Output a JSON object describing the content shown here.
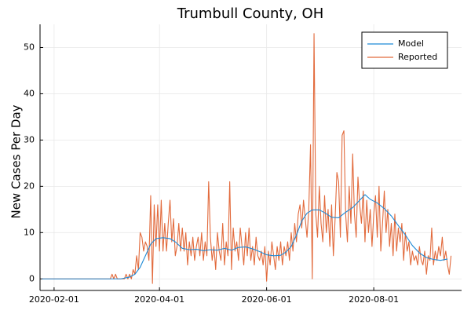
{
  "chart_data": {
    "type": "line",
    "title": "Trumbull County, OH",
    "xlabel": "",
    "ylabel": "New Cases Per Day",
    "x_axis": {
      "type": "date",
      "range": [
        "2020-01-24",
        "2020-09-20"
      ],
      "ticks": [
        "2020-02-01",
        "2020-04-01",
        "2020-06-01",
        "2020-08-01"
      ]
    },
    "y_axis": {
      "range": [
        -2.5,
        55
      ],
      "ticks": [
        0,
        10,
        20,
        30,
        40,
        50
      ]
    },
    "grid": true,
    "legend": "top-right",
    "series": [
      {
        "name": "Model",
        "color": "#1f8ad6",
        "points": [
          [
            "2020-01-25",
            0
          ],
          [
            "2020-03-10",
            0
          ],
          [
            "2020-03-15",
            0.4
          ],
          [
            "2020-03-18",
            1.0
          ],
          [
            "2020-03-21",
            2.5
          ],
          [
            "2020-03-24",
            5.0
          ],
          [
            "2020-03-27",
            7.5
          ],
          [
            "2020-03-30",
            8.7
          ],
          [
            "2020-04-03",
            8.9
          ],
          [
            "2020-04-07",
            8.7
          ],
          [
            "2020-04-10",
            8.0
          ],
          [
            "2020-04-14",
            6.6
          ],
          [
            "2020-04-18",
            6.3
          ],
          [
            "2020-04-22",
            6.4
          ],
          [
            "2020-04-26",
            6.1
          ],
          [
            "2020-04-30",
            6.3
          ],
          [
            "2020-05-04",
            6.2
          ],
          [
            "2020-05-08",
            6.6
          ],
          [
            "2020-05-12",
            6.2
          ],
          [
            "2020-05-16",
            6.8
          ],
          [
            "2020-05-20",
            6.9
          ],
          [
            "2020-05-24",
            6.5
          ],
          [
            "2020-05-28",
            5.9
          ],
          [
            "2020-06-01",
            5.2
          ],
          [
            "2020-06-05",
            5.0
          ],
          [
            "2020-06-09",
            5.1
          ],
          [
            "2020-06-12",
            5.8
          ],
          [
            "2020-06-15",
            7.0
          ],
          [
            "2020-06-18",
            9.5
          ],
          [
            "2020-06-21",
            12.5
          ],
          [
            "2020-06-24",
            14.2
          ],
          [
            "2020-06-27",
            14.9
          ],
          [
            "2020-07-01",
            14.9
          ],
          [
            "2020-07-04",
            14.3
          ],
          [
            "2020-07-08",
            13.3
          ],
          [
            "2020-07-12",
            13.2
          ],
          [
            "2020-07-16",
            14.4
          ],
          [
            "2020-07-20",
            15.4
          ],
          [
            "2020-07-24",
            17.0
          ],
          [
            "2020-07-27",
            18.2
          ],
          [
            "2020-07-30",
            17.2
          ],
          [
            "2020-08-03",
            16.4
          ],
          [
            "2020-08-07",
            15.2
          ],
          [
            "2020-08-11",
            13.6
          ],
          [
            "2020-08-15",
            11.5
          ],
          [
            "2020-08-19",
            9.5
          ],
          [
            "2020-08-23",
            7.2
          ],
          [
            "2020-08-27",
            5.6
          ],
          [
            "2020-08-31",
            4.6
          ],
          [
            "2020-09-04",
            4.2
          ],
          [
            "2020-09-08",
            4.0
          ],
          [
            "2020-09-12",
            4.3
          ]
        ]
      },
      {
        "name": "Reported",
        "color": "#e26a3c",
        "points": [
          [
            "2020-01-25",
            0
          ],
          [
            "2020-03-04",
            0
          ],
          [
            "2020-03-05",
            1
          ],
          [
            "2020-03-06",
            0
          ],
          [
            "2020-03-07",
            1
          ],
          [
            "2020-03-08",
            0
          ],
          [
            "2020-03-12",
            0
          ],
          [
            "2020-03-13",
            1
          ],
          [
            "2020-03-14",
            0
          ],
          [
            "2020-03-15",
            1
          ],
          [
            "2020-03-16",
            0
          ],
          [
            "2020-03-17",
            2
          ],
          [
            "2020-03-18",
            1
          ],
          [
            "2020-03-19",
            5
          ],
          [
            "2020-03-20",
            2
          ],
          [
            "2020-03-21",
            10
          ],
          [
            "2020-03-22",
            9
          ],
          [
            "2020-03-23",
            6
          ],
          [
            "2020-03-24",
            8
          ],
          [
            "2020-03-25",
            7
          ],
          [
            "2020-03-26",
            4
          ],
          [
            "2020-03-27",
            18
          ],
          [
            "2020-03-28",
            -1
          ],
          [
            "2020-03-29",
            16
          ],
          [
            "2020-03-30",
            7
          ],
          [
            "2020-03-31",
            16
          ],
          [
            "2020-04-01",
            6
          ],
          [
            "2020-04-02",
            17
          ],
          [
            "2020-04-03",
            6
          ],
          [
            "2020-04-04",
            12
          ],
          [
            "2020-04-05",
            6
          ],
          [
            "2020-04-06",
            12
          ],
          [
            "2020-04-07",
            17
          ],
          [
            "2020-04-08",
            8
          ],
          [
            "2020-04-09",
            13
          ],
          [
            "2020-04-10",
            5
          ],
          [
            "2020-04-11",
            7
          ],
          [
            "2020-04-12",
            12
          ],
          [
            "2020-04-13",
            6
          ],
          [
            "2020-04-14",
            11
          ],
          [
            "2020-04-15",
            6
          ],
          [
            "2020-04-16",
            10
          ],
          [
            "2020-04-17",
            3
          ],
          [
            "2020-04-18",
            8
          ],
          [
            "2020-04-19",
            5
          ],
          [
            "2020-04-20",
            9
          ],
          [
            "2020-04-21",
            4
          ],
          [
            "2020-04-22",
            7
          ],
          [
            "2020-04-23",
            9
          ],
          [
            "2020-04-24",
            5
          ],
          [
            "2020-04-25",
            10
          ],
          [
            "2020-04-26",
            4
          ],
          [
            "2020-04-27",
            8
          ],
          [
            "2020-04-28",
            5
          ],
          [
            "2020-04-29",
            21
          ],
          [
            "2020-04-30",
            9
          ],
          [
            "2020-05-01",
            4
          ],
          [
            "2020-05-02",
            7
          ],
          [
            "2020-05-03",
            2
          ],
          [
            "2020-05-04",
            10
          ],
          [
            "2020-05-05",
            6
          ],
          [
            "2020-05-06",
            4
          ],
          [
            "2020-05-07",
            12
          ],
          [
            "2020-05-08",
            3
          ],
          [
            "2020-05-09",
            8
          ],
          [
            "2020-05-10",
            5
          ],
          [
            "2020-05-11",
            21
          ],
          [
            "2020-05-12",
            2
          ],
          [
            "2020-05-13",
            11
          ],
          [
            "2020-05-14",
            6
          ],
          [
            "2020-05-15",
            8
          ],
          [
            "2020-05-16",
            4
          ],
          [
            "2020-05-17",
            11
          ],
          [
            "2020-05-18",
            7
          ],
          [
            "2020-05-19",
            3
          ],
          [
            "2020-05-20",
            10
          ],
          [
            "2020-05-21",
            5
          ],
          [
            "2020-05-22",
            11
          ],
          [
            "2020-05-23",
            4
          ],
          [
            "2020-05-24",
            7
          ],
          [
            "2020-05-25",
            3
          ],
          [
            "2020-05-26",
            9
          ],
          [
            "2020-05-27",
            5
          ],
          [
            "2020-05-28",
            4
          ],
          [
            "2020-05-29",
            6
          ],
          [
            "2020-05-30",
            3
          ],
          [
            "2020-05-31",
            7
          ],
          [
            "2020-06-01",
            -0.5
          ],
          [
            "2020-06-02",
            6
          ],
          [
            "2020-06-03",
            3
          ],
          [
            "2020-06-04",
            8
          ],
          [
            "2020-06-05",
            5
          ],
          [
            "2020-06-06",
            2
          ],
          [
            "2020-06-07",
            7
          ],
          [
            "2020-06-08",
            4
          ],
          [
            "2020-06-09",
            8
          ],
          [
            "2020-06-10",
            3
          ],
          [
            "2020-06-11",
            7
          ],
          [
            "2020-06-12",
            5
          ],
          [
            "2020-06-13",
            8
          ],
          [
            "2020-06-14",
            4
          ],
          [
            "2020-06-15",
            10
          ],
          [
            "2020-06-16",
            6
          ],
          [
            "2020-06-17",
            12
          ],
          [
            "2020-06-18",
            8
          ],
          [
            "2020-06-19",
            14
          ],
          [
            "2020-06-20",
            16
          ],
          [
            "2020-06-21",
            11
          ],
          [
            "2020-06-22",
            17
          ],
          [
            "2020-06-23",
            13
          ],
          [
            "2020-06-24",
            9
          ],
          [
            "2020-06-25",
            15
          ],
          [
            "2020-06-26",
            29
          ],
          [
            "2020-06-27",
            0
          ],
          [
            "2020-06-28",
            53
          ],
          [
            "2020-06-29",
            14
          ],
          [
            "2020-06-30",
            9
          ],
          [
            "2020-07-01",
            20
          ],
          [
            "2020-07-02",
            12
          ],
          [
            "2020-07-03",
            8
          ],
          [
            "2020-07-04",
            18
          ],
          [
            "2020-07-05",
            10
          ],
          [
            "2020-07-06",
            15
          ],
          [
            "2020-07-07",
            7
          ],
          [
            "2020-07-08",
            16
          ],
          [
            "2020-07-09",
            5
          ],
          [
            "2020-07-10",
            13
          ],
          [
            "2020-07-11",
            23
          ],
          [
            "2020-07-12",
            21
          ],
          [
            "2020-07-13",
            9
          ],
          [
            "2020-07-14",
            31
          ],
          [
            "2020-07-15",
            32
          ],
          [
            "2020-07-16",
            14
          ],
          [
            "2020-07-17",
            8
          ],
          [
            "2020-07-18",
            20
          ],
          [
            "2020-07-19",
            12
          ],
          [
            "2020-07-20",
            27
          ],
          [
            "2020-07-21",
            14
          ],
          [
            "2020-07-22",
            9
          ],
          [
            "2020-07-23",
            22
          ],
          [
            "2020-07-24",
            16
          ],
          [
            "2020-07-25",
            12
          ],
          [
            "2020-07-26",
            19
          ],
          [
            "2020-07-27",
            8
          ],
          [
            "2020-07-28",
            17
          ],
          [
            "2020-07-29",
            10
          ],
          [
            "2020-07-30",
            15
          ],
          [
            "2020-07-31",
            7
          ],
          [
            "2020-08-01",
            14
          ],
          [
            "2020-08-02",
            18
          ],
          [
            "2020-08-03",
            9
          ],
          [
            "2020-08-04",
            20
          ],
          [
            "2020-08-05",
            6
          ],
          [
            "2020-08-06",
            12
          ],
          [
            "2020-08-07",
            19
          ],
          [
            "2020-08-08",
            10
          ],
          [
            "2020-08-09",
            15
          ],
          [
            "2020-08-10",
            7
          ],
          [
            "2020-08-11",
            12
          ],
          [
            "2020-08-12",
            5
          ],
          [
            "2020-08-13",
            14
          ],
          [
            "2020-08-14",
            6
          ],
          [
            "2020-08-15",
            11
          ],
          [
            "2020-08-16",
            8
          ],
          [
            "2020-08-17",
            12
          ],
          [
            "2020-08-18",
            4
          ],
          [
            "2020-08-19",
            10
          ],
          [
            "2020-08-20",
            6
          ],
          [
            "2020-08-21",
            8
          ],
          [
            "2020-08-22",
            3
          ],
          [
            "2020-08-23",
            6
          ],
          [
            "2020-08-24",
            4
          ],
          [
            "2020-08-25",
            5
          ],
          [
            "2020-08-26",
            3
          ],
          [
            "2020-08-27",
            7
          ],
          [
            "2020-08-28",
            4
          ],
          [
            "2020-08-29",
            3
          ],
          [
            "2020-08-30",
            6
          ],
          [
            "2020-08-31",
            1
          ],
          [
            "2020-09-01",
            5
          ],
          [
            "2020-09-02",
            4
          ],
          [
            "2020-09-03",
            11
          ],
          [
            "2020-09-04",
            3
          ],
          [
            "2020-09-05",
            6
          ],
          [
            "2020-09-06",
            4
          ],
          [
            "2020-09-07",
            7
          ],
          [
            "2020-09-08",
            5
          ],
          [
            "2020-09-09",
            9
          ],
          [
            "2020-09-10",
            4
          ],
          [
            "2020-09-11",
            6
          ],
          [
            "2020-09-12",
            3
          ],
          [
            "2020-09-13",
            1
          ],
          [
            "2020-09-14",
            5
          ]
        ]
      }
    ]
  }
}
